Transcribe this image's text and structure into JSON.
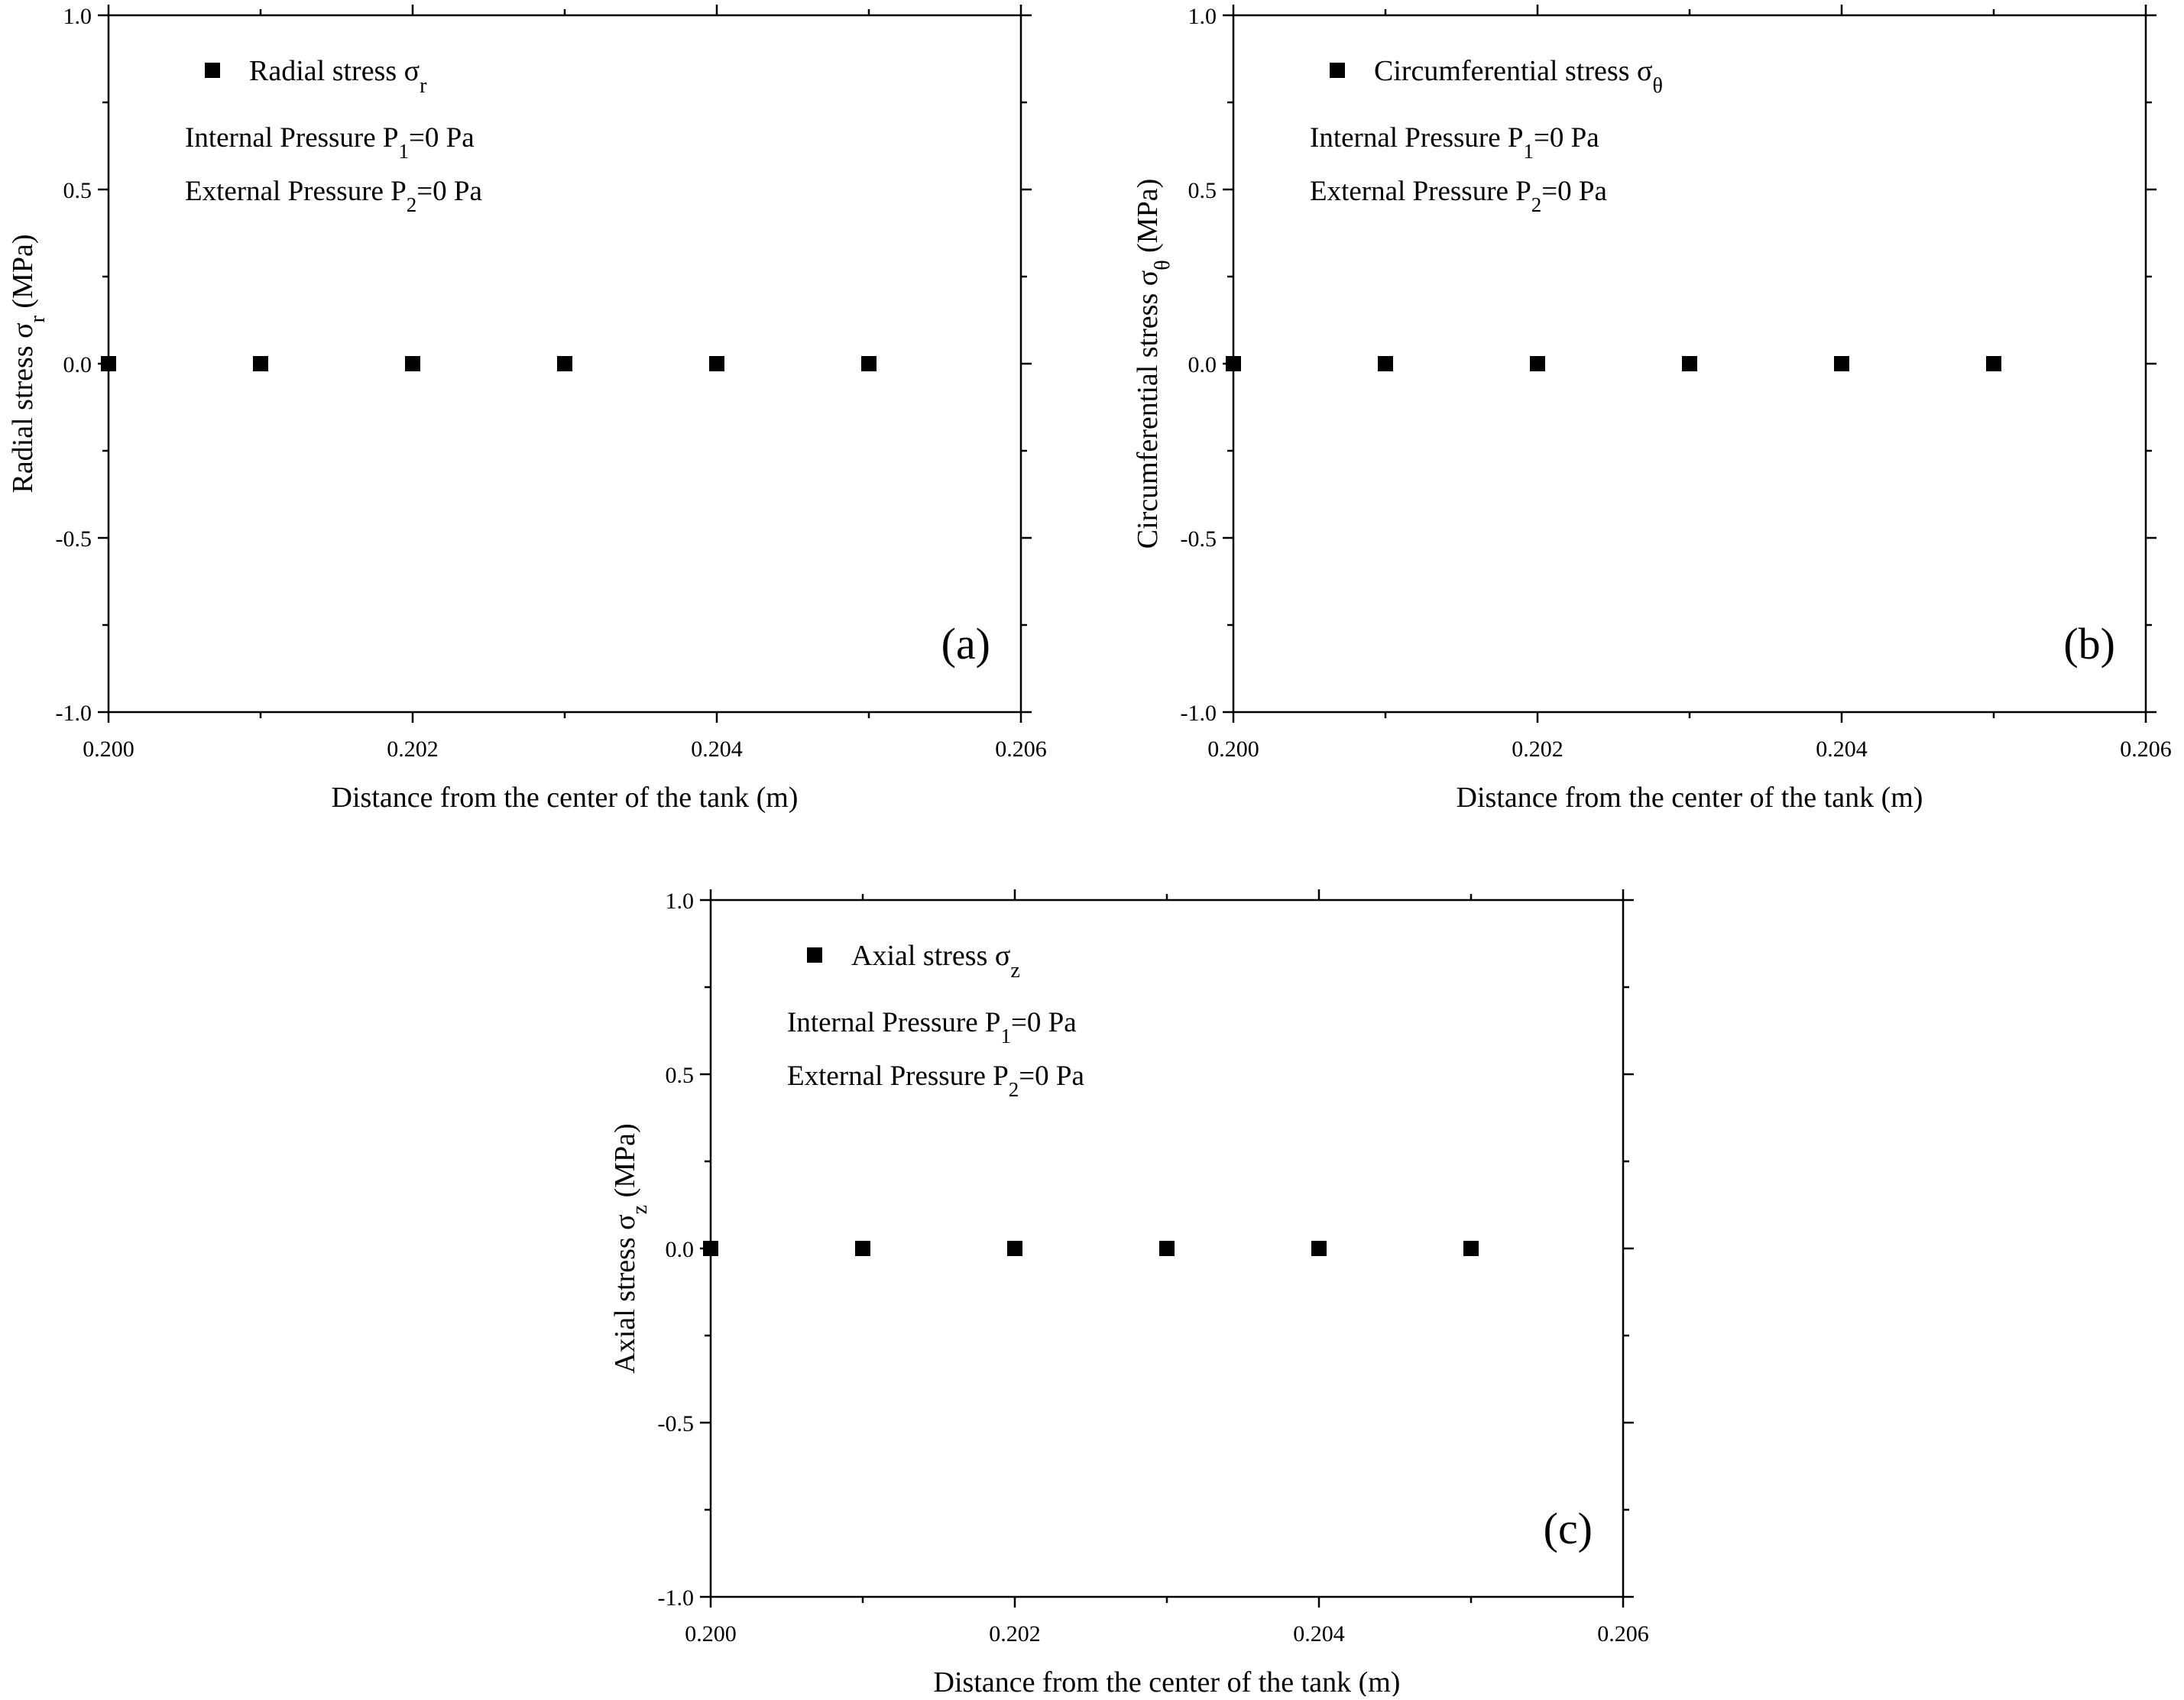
{
  "figure": {
    "colors": {
      "marker": "#000000",
      "axis": "#000000",
      "background": "#ffffff"
    }
  },
  "chart_data": [
    {
      "panel": "(a)",
      "type": "scatter",
      "xlabel": "Distance from the center of the tank (m)",
      "ylabel_text": "Radial stress σ",
      "ylabel_sub": "r",
      "ylabel_unit": " (MPa)",
      "xlim": [
        0.2,
        0.206
      ],
      "ylim": [
        -1.0,
        1.0
      ],
      "xticks": [
        0.2,
        0.202,
        0.204,
        0.206
      ],
      "xtick_labels": [
        "0.200",
        "0.202",
        "0.204",
        "0.206"
      ],
      "yticks": [
        -1.0,
        -0.5,
        0.0,
        0.5,
        1.0
      ],
      "ytick_labels": [
        "-1.0",
        "-0.5",
        "0.0",
        "0.5",
        "1.0"
      ],
      "legend": {
        "text": "Radial stress σ",
        "sub": "r",
        "placement": "top-left"
      },
      "annotations": [
        {
          "pre": "Internal Pressure P",
          "sub": "1",
          "post": "=0 Pa"
        },
        {
          "pre": "External Pressure P",
          "sub": "2",
          "post": "=0 Pa"
        }
      ],
      "series": [
        {
          "name": "Radial stress σr",
          "x": [
            0.2,
            0.201,
            0.202,
            0.203,
            0.204,
            0.205
          ],
          "y": [
            0,
            0,
            0,
            0,
            0,
            0
          ]
        }
      ]
    },
    {
      "panel": "(b)",
      "type": "scatter",
      "xlabel": "Distance from the center of the tank (m)",
      "ylabel_text": "Circumferential stress σ",
      "ylabel_sub": "θ",
      "ylabel_unit": " (MPa)",
      "xlim": [
        0.2,
        0.206
      ],
      "ylim": [
        -1.0,
        1.0
      ],
      "xticks": [
        0.2,
        0.202,
        0.204,
        0.206
      ],
      "xtick_labels": [
        "0.200",
        "0.202",
        "0.204",
        "0.206"
      ],
      "yticks": [
        -1.0,
        -0.5,
        0.0,
        0.5,
        1.0
      ],
      "ytick_labels": [
        "-1.0",
        "-0.5",
        "0.0",
        "0.5",
        "1.0"
      ],
      "legend": {
        "text": "Circumferential stress σ",
        "sub": "θ",
        "placement": "top-left"
      },
      "annotations": [
        {
          "pre": "Internal Pressure P",
          "sub": "1",
          "post": "=0 Pa"
        },
        {
          "pre": "External Pressure P",
          "sub": "2",
          "post": "=0 Pa"
        }
      ],
      "series": [
        {
          "name": "Circumferential stress σθ",
          "x": [
            0.2,
            0.201,
            0.202,
            0.203,
            0.204,
            0.205
          ],
          "y": [
            0,
            0,
            0,
            0,
            0,
            0
          ]
        }
      ]
    },
    {
      "panel": "(c)",
      "type": "scatter",
      "xlabel": "Distance from the center of the tank (m)",
      "ylabel_text": "Axial stress σ",
      "ylabel_sub": "z",
      "ylabel_unit": " (MPa)",
      "xlim": [
        0.2,
        0.206
      ],
      "ylim": [
        -1.0,
        1.0
      ],
      "xticks": [
        0.2,
        0.202,
        0.204,
        0.206
      ],
      "xtick_labels": [
        "0.200",
        "0.202",
        "0.204",
        "0.206"
      ],
      "yticks": [
        -1.0,
        -0.5,
        0.0,
        0.5,
        1.0
      ],
      "ytick_labels": [
        "-1.0",
        "-0.5",
        "0.0",
        "0.5",
        "1.0"
      ],
      "legend": {
        "text": "Axial stress σ",
        "sub": "z",
        "placement": "top-left"
      },
      "annotations": [
        {
          "pre": "Internal Pressure P",
          "sub": "1",
          "post": "=0 Pa"
        },
        {
          "pre": "External Pressure P",
          "sub": "2",
          "post": "=0 Pa"
        }
      ],
      "series": [
        {
          "name": "Axial stress σz",
          "x": [
            0.2,
            0.201,
            0.202,
            0.203,
            0.204,
            0.205
          ],
          "y": [
            0,
            0,
            0,
            0,
            0,
            0
          ]
        }
      ]
    }
  ]
}
